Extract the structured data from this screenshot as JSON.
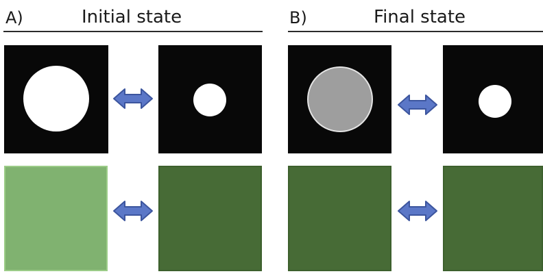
{
  "panel_a": {
    "letter": "A)",
    "title": "Initial state",
    "colors": {
      "bottom_left": "#80b270",
      "bottom_left_border": "#9ccc88",
      "bottom_right": "#476b36",
      "bottom_right_border": "#3d602d"
    }
  },
  "panel_b": {
    "letter": "B)",
    "title": "Final state",
    "colors": {
      "bottom_left": "#476b36",
      "bottom_left_border": "#3d602d",
      "bottom_right": "#476b36",
      "bottom_right_border": "#3d602d"
    }
  },
  "arrow_color": "#5b77c7",
  "arrow_outline": "#3c559e",
  "arrow_icon": "double-headed-arrow"
}
